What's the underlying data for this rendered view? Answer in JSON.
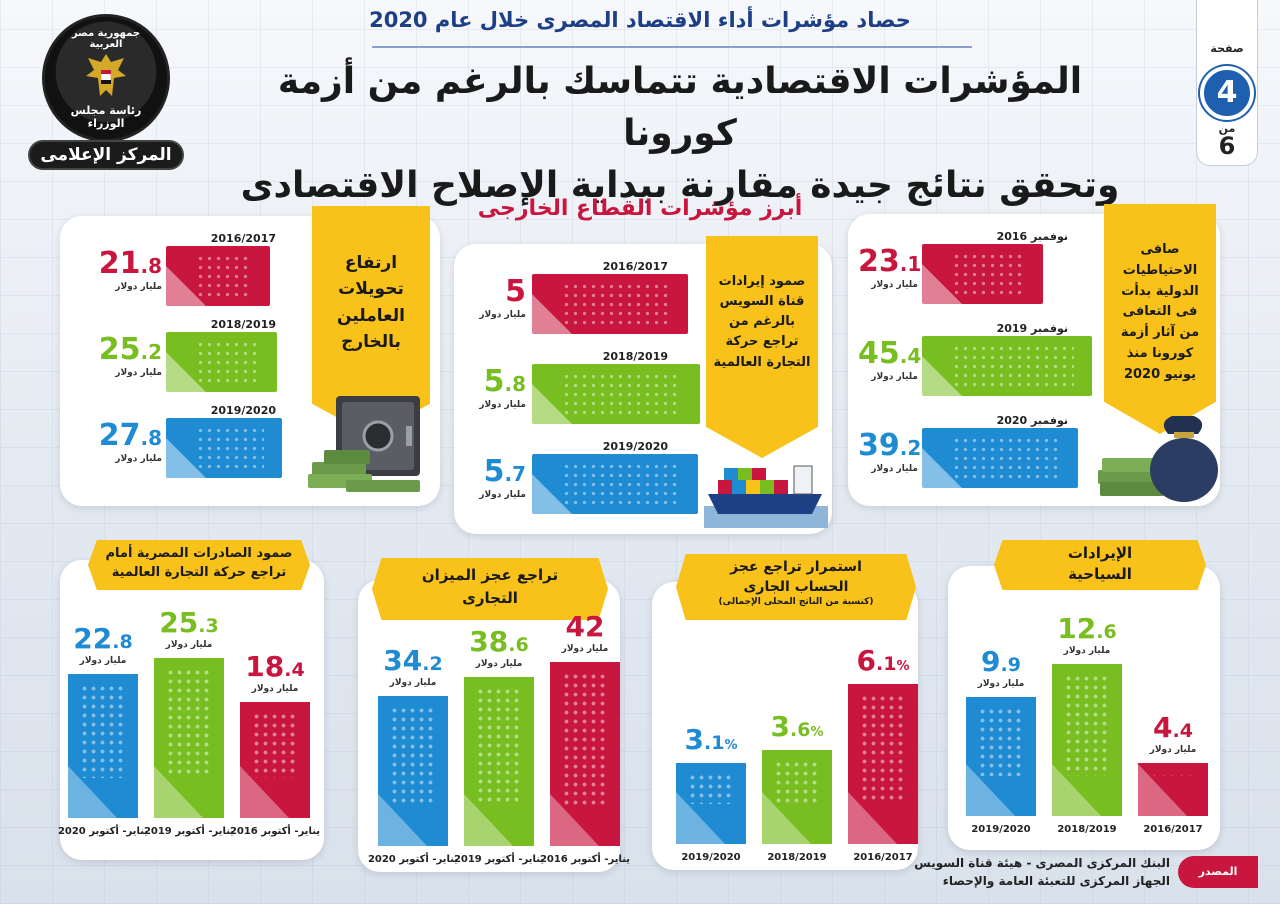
{
  "header": {
    "subtitle": "حصاد مؤشرات أداء الاقتصاد المصرى خلال عام 2020",
    "headline_line1": "المؤشرات الاقتصادية تتماسك بالرغم من أزمة كورونا",
    "headline_line2": "وتحقق نتائج جيدة مقارنة ببداية الإصلاح الاقتصادى"
  },
  "logo": {
    "ring_text": "جمهورية مصر العربية",
    "council_text": "رئاسة مجلس الوزراء",
    "banner_text": "المركز الإعلامى"
  },
  "pagination": {
    "label": "صفحة",
    "current": "4",
    "of_label": "من",
    "total": "6"
  },
  "section_title": "أبرز مؤشرات القطاع الخارجى",
  "colors": {
    "red": "#c8163f",
    "green": "#78be21",
    "blue": "#1f8bd3",
    "yellow": "#f8c21a"
  },
  "chart_data": [
    {
      "type": "bar",
      "orientation": "horizontal",
      "title": "ارتفاع تحويلات العاملين بالخارج",
      "unit": "مليار دولار",
      "categories": [
        "2016/2017",
        "2018/2019",
        "2019/2020"
      ],
      "labels": [
        [
          "21",
          ".8"
        ],
        [
          "25",
          ".2"
        ],
        [
          "27",
          ".8"
        ]
      ],
      "values": [
        21.8,
        25.2,
        27.8
      ],
      "bar_colors": [
        "#c8163f",
        "#78be21",
        "#1f8bd3"
      ]
    },
    {
      "type": "bar",
      "orientation": "horizontal",
      "title": "صمود إيرادات قناة السويس بالرغم من تراجع حركة التجارة العالمية",
      "unit": "مليار دولار",
      "categories": [
        "2016/2017",
        "2018/2019",
        "2019/2020"
      ],
      "labels": [
        [
          "5",
          ""
        ],
        [
          "5",
          ".8"
        ],
        [
          "5",
          ".7"
        ]
      ],
      "values": [
        5,
        5.8,
        5.7
      ],
      "bar_colors": [
        "#c8163f",
        "#78be21",
        "#1f8bd3"
      ]
    },
    {
      "type": "bar",
      "orientation": "horizontal",
      "title": "صافى الاحتياطيات الدولية بدأت فى التعافى من آثار أزمة كورونا منذ يونيو 2020",
      "unit": "مليار دولار",
      "categories": [
        "نوفمبر 2016",
        "نوفمبر 2019",
        "نوفمبر 2020"
      ],
      "labels": [
        [
          "23",
          ".1"
        ],
        [
          "45",
          ".4"
        ],
        [
          "39",
          ".2"
        ]
      ],
      "values": [
        23.1,
        45.4,
        39.2
      ],
      "bar_colors": [
        "#c8163f",
        "#78be21",
        "#1f8bd3"
      ]
    },
    {
      "type": "bar",
      "title": "صمود الصادرات المصرية أمام تراجع حركة التجارة العالمية",
      "unit": "مليار دولار",
      "categories": [
        "يناير- أكتوبر 2020",
        "يناير- أكتوبر 2019",
        "يناير- أكتوبر 2016"
      ],
      "labels": [
        [
          "22",
          ".8"
        ],
        [
          "25",
          ".3"
        ],
        [
          "18",
          ".4"
        ]
      ],
      "values": [
        22.8,
        25.3,
        18.4
      ],
      "bar_colors": [
        "#1f8bd3",
        "#78be21",
        "#c8163f"
      ]
    },
    {
      "type": "bar",
      "title": "تراجع عجز الميزان التجارى",
      "unit": "مليار دولار",
      "categories": [
        "يناير- أكتوبر 2020",
        "يناير- أكتوبر 2019",
        "يناير- أكتوبر 2016"
      ],
      "labels": [
        [
          "34",
          ".2"
        ],
        [
          "38",
          ".6"
        ],
        [
          "42",
          ""
        ]
      ],
      "values": [
        34.2,
        38.6,
        42
      ],
      "bar_colors": [
        "#1f8bd3",
        "#78be21",
        "#c8163f"
      ]
    },
    {
      "type": "bar",
      "title": "استمرار تراجع عجز الحساب الجارى",
      "subtitle": "(كنسبة من الناتج المحلى الإجمالى)",
      "unit": "",
      "suffix": "%",
      "categories": [
        "2019/2020",
        "2018/2019",
        "2016/2017"
      ],
      "labels": [
        [
          "3",
          ".1"
        ],
        [
          "3",
          ".6"
        ],
        [
          "6",
          ".1"
        ]
      ],
      "values": [
        3.1,
        3.6,
        6.1
      ],
      "bar_colors": [
        "#1f8bd3",
        "#78be21",
        "#c8163f"
      ]
    },
    {
      "type": "bar",
      "title": "الإيرادات السياحية",
      "unit": "مليار دولار",
      "categories": [
        "2019/2020",
        "2018/2019",
        "2016/2017"
      ],
      "labels": [
        [
          "9",
          ".9"
        ],
        [
          "12",
          ".6"
        ],
        [
          "4",
          ".4"
        ]
      ],
      "values": [
        9.9,
        12.6,
        4.4
      ],
      "bar_colors": [
        "#1f8bd3",
        "#78be21",
        "#c8163f"
      ]
    }
  ],
  "source": {
    "label": "المصدر",
    "line1": "البنك المركزى المصرى - هيئة قناة السويس",
    "line2": "الجهاز المركزى للتعبئة العامة والإحصاء"
  }
}
